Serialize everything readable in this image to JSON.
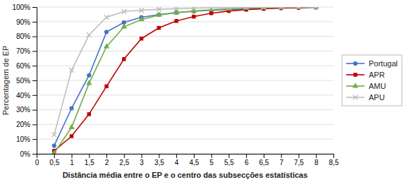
{
  "chart_data": {
    "type": "line",
    "x_label": "Distância média entre o EP e o centro das subsecções estatísticas",
    "y_label": "Percentagem de EP",
    "x": [
      0.5,
      1.0,
      1.5,
      2.0,
      2.5,
      3.0,
      3.5,
      4.0,
      4.5,
      5.0,
      5.5,
      6.0,
      6.5,
      7.0,
      7.5,
      8.0
    ],
    "series": [
      {
        "name": "Portugal",
        "color": "#4472C4",
        "marker": "circle",
        "line_style": "solid",
        "values": [
          0.055,
          0.31,
          0.535,
          0.83,
          0.895,
          0.93,
          0.948,
          0.962,
          0.971,
          0.978,
          0.983,
          0.987,
          0.991,
          0.994,
          0.996,
          0.998
        ]
      },
      {
        "name": "APR",
        "color": "#C00000",
        "marker": "square",
        "line_style": "solid",
        "values": [
          0.02,
          0.12,
          0.27,
          0.46,
          0.645,
          0.785,
          0.858,
          0.905,
          0.935,
          0.958,
          0.973,
          0.982,
          0.988,
          0.993,
          0.996,
          0.999
        ]
      },
      {
        "name": "AMU",
        "color": "#70AD47",
        "marker": "triangle",
        "line_style": "solid",
        "values": [
          0.005,
          0.18,
          0.48,
          0.73,
          0.865,
          0.915,
          0.945,
          0.962,
          0.973,
          0.982,
          0.988,
          0.993,
          0.996,
          0.998,
          0.999,
          1.0
        ]
      },
      {
        "name": "APU",
        "color": "#BFBFBF",
        "marker": "x",
        "line_style": "solid",
        "values": [
          0.13,
          0.57,
          0.81,
          0.93,
          0.97,
          0.978,
          0.985,
          0.989,
          0.992,
          0.995,
          0.997,
          0.998,
          0.999,
          0.999,
          1.0,
          1.0
        ]
      }
    ],
    "xlim": [
      0,
      8.5
    ],
    "ylim": [
      0,
      1.0
    ],
    "xticks": [
      0,
      {
        "value": 0.5,
        "label": "0,5"
      },
      1,
      {
        "value": 1.5,
        "label": "1,5"
      },
      2,
      {
        "value": 2.5,
        "label": "2,5"
      },
      3,
      {
        "value": 3.5,
        "label": "3,5"
      },
      4,
      {
        "value": 4.5,
        "label": "4,5"
      },
      5,
      {
        "value": 5.5,
        "label": "5,5"
      },
      6,
      {
        "value": 6.5,
        "label": "6,5"
      },
      7,
      {
        "value": 7.5,
        "label": "7,5"
      },
      8,
      {
        "value": 8.5,
        "label": "8,5"
      }
    ],
    "yticks": [
      {
        "value": 0.0,
        "label": "0%"
      },
      {
        "value": 0.1,
        "label": "10%"
      },
      {
        "value": 0.2,
        "label": "20%"
      },
      {
        "value": 0.3,
        "label": "30%"
      },
      {
        "value": 0.4,
        "label": "40%"
      },
      {
        "value": 0.5,
        "label": "50%"
      },
      {
        "value": 0.6,
        "label": "60%"
      },
      {
        "value": 0.7,
        "label": "70%"
      },
      {
        "value": 0.8,
        "label": "80%"
      },
      {
        "value": 0.9,
        "label": "90%"
      },
      {
        "value": 1.0,
        "label": "100%"
      }
    ],
    "grid": true,
    "legend": "right"
  }
}
